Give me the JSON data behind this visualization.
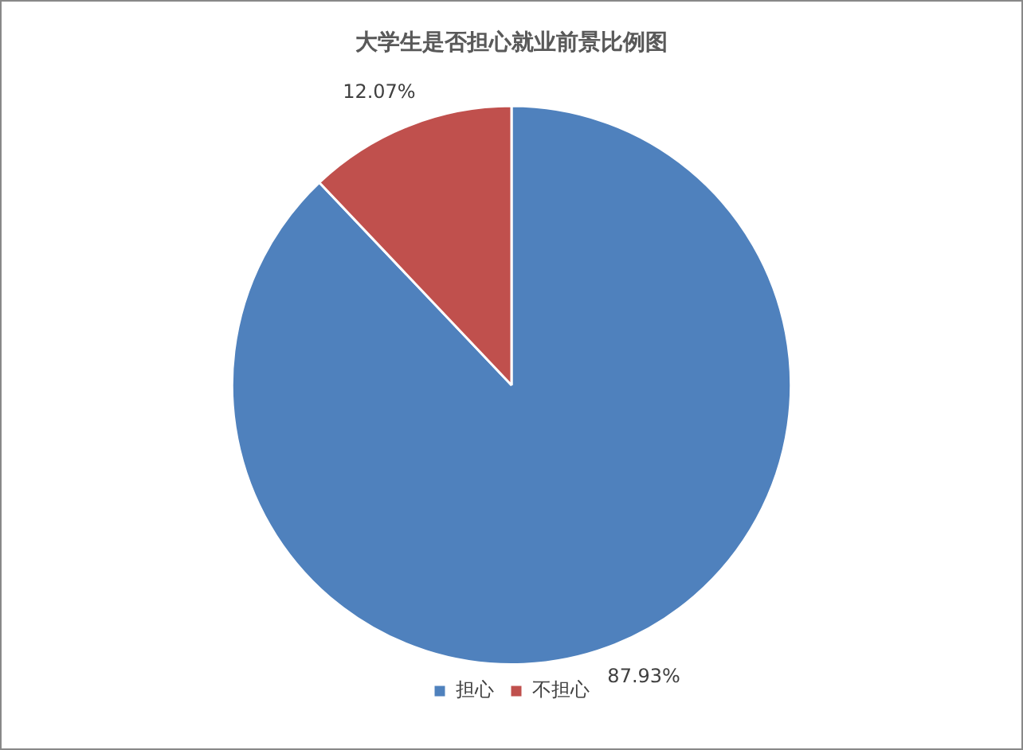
{
  "chart_data": {
    "type": "pie",
    "title": "大学生是否担心就业前景比例图",
    "categories": [
      "担心",
      "不担心"
    ],
    "values": [
      87.93,
      12.07
    ],
    "colors": [
      "#4f81bd",
      "#c0504d"
    ],
    "value_labels": [
      "87.93%",
      "12.07%"
    ],
    "legend": "bottom"
  }
}
